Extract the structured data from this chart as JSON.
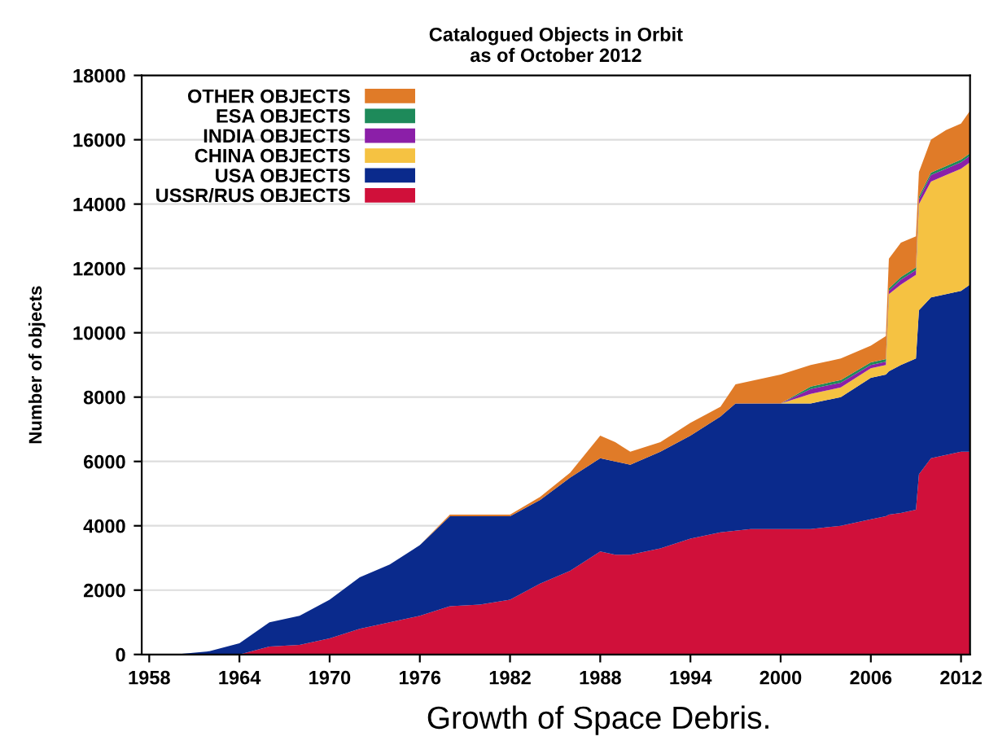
{
  "chart_data": {
    "type": "area",
    "stacked": true,
    "title": "Catalogued Objects in Orbit\nas of October 2012",
    "ylabel": "Number of objects",
    "annotations": [
      "Growth of Space Debris."
    ],
    "x": [
      1958,
      1960,
      1962,
      1964,
      1966,
      1968,
      1970,
      1972,
      1974,
      1976,
      1978,
      1980,
      1982,
      1984,
      1986,
      1988,
      1989,
      1990,
      1992,
      1994,
      1996,
      1997,
      1998,
      2000,
      2002,
      2004,
      2006,
      2007,
      2007.2,
      2008,
      2009,
      2009.2,
      2010,
      2011,
      2012,
      2012.6
    ],
    "series": [
      {
        "name": "USSR/RUS OBJECTS",
        "color": "#d0103a",
        "values": [
          0,
          0,
          0,
          0,
          250,
          300,
          500,
          800,
          1000,
          1200,
          1500,
          1550,
          1700,
          2200,
          2600,
          3200,
          3100,
          3100,
          3300,
          3600,
          3800,
          3850,
          3900,
          3900,
          3900,
          4000,
          4200,
          4300,
          4350,
          4400,
          4500,
          5600,
          6100,
          6200,
          6300,
          6300
        ]
      },
      {
        "name": "USA OBJECTS",
        "color": "#0a2a8c",
        "values": [
          0,
          10,
          100,
          350,
          750,
          900,
          1200,
          1600,
          1800,
          2200,
          2800,
          2750,
          2600,
          2600,
          2900,
          2900,
          2900,
          2800,
          3000,
          3200,
          3600,
          3950,
          3900,
          3900,
          3900,
          4000,
          4400,
          4400,
          4450,
          4600,
          4700,
          5100,
          5000,
          5000,
          5000,
          5200
        ]
      },
      {
        "name": "CHINA OBJECTS",
        "color": "#f5c242",
        "values": [
          0,
          0,
          0,
          0,
          0,
          0,
          0,
          0,
          0,
          0,
          0,
          0,
          0,
          0,
          0,
          0,
          0,
          0,
          0,
          0,
          0,
          0,
          0,
          0,
          300,
          300,
          300,
          300,
          2400,
          2500,
          2600,
          3300,
          3600,
          3700,
          3800,
          3800
        ]
      },
      {
        "name": "INDIA OBJECTS",
        "color": "#8b1fa8",
        "values": [
          0,
          0,
          0,
          0,
          0,
          0,
          0,
          0,
          0,
          0,
          0,
          0,
          0,
          0,
          0,
          0,
          0,
          0,
          0,
          0,
          0,
          0,
          0,
          0,
          150,
          150,
          100,
          100,
          100,
          150,
          150,
          150,
          200,
          200,
          200,
          200
        ]
      },
      {
        "name": "ESA OBJECTS",
        "color": "#1e8a5a",
        "values": [
          0,
          0,
          0,
          0,
          0,
          0,
          0,
          0,
          0,
          0,
          0,
          0,
          0,
          0,
          0,
          0,
          0,
          0,
          0,
          0,
          0,
          0,
          0,
          0,
          80,
          80,
          80,
          80,
          80,
          80,
          80,
          80,
          80,
          80,
          80,
          80
        ]
      },
      {
        "name": "OTHER OBJECTS",
        "color": "#e07b28",
        "values": [
          0,
          0,
          0,
          0,
          0,
          0,
          0,
          0,
          0,
          0,
          50,
          50,
          50,
          100,
          150,
          700,
          600,
          400,
          300,
          400,
          300,
          600,
          700,
          900,
          670,
          670,
          520,
          720,
          920,
          1070,
          970,
          770,
          1020,
          1120,
          1120,
          1320
        ]
      }
    ],
    "xlim": [
      1957.5,
      2012.6
    ],
    "xticks": [
      1958,
      1964,
      1970,
      1976,
      1982,
      1988,
      1994,
      2000,
      2006,
      2012
    ],
    "ylim": [
      0,
      18000
    ],
    "yticks": [
      0,
      2000,
      4000,
      6000,
      8000,
      10000,
      12000,
      14000,
      16000,
      18000
    ],
    "grid": "y",
    "legend": "top left"
  }
}
